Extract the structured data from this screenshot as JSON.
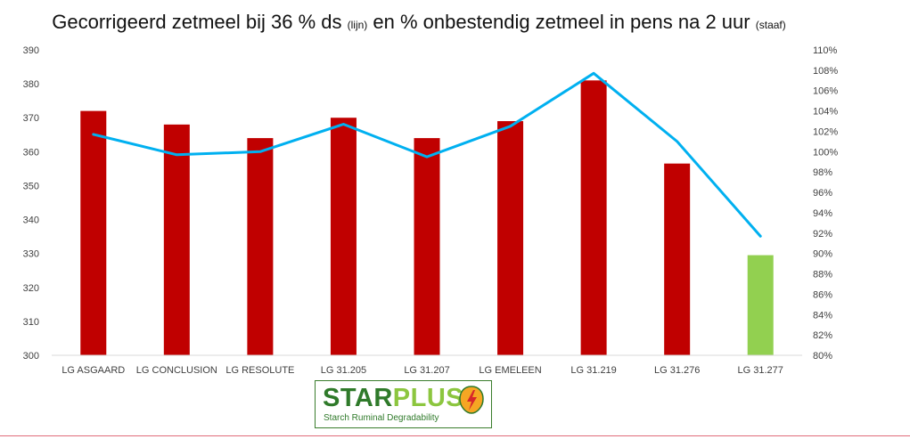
{
  "title": {
    "part1": "Gecorrigeerd zetmeel bij 36 % ds",
    "part2": "(lijn)",
    "part3": "en % onbestendig zetmeel in pens na 2 uur",
    "part4": "(staaf)"
  },
  "chart_data": {
    "type": "bar",
    "categories": [
      "LG ASGAARD",
      "LG CONCLUSION",
      "LG RESOLUTE",
      "LG 31.205",
      "LG 31.207",
      "LG EMELEEN",
      "LG 31.219",
      "LG 31.276",
      "LG 31.277"
    ],
    "series": [
      {
        "type": "bar",
        "axis": "left",
        "values": [
          372,
          368,
          364,
          370,
          364,
          369,
          381,
          356.5,
          329.5
        ],
        "colors": [
          "#c00000",
          "#c00000",
          "#c00000",
          "#c00000",
          "#c00000",
          "#c00000",
          "#c00000",
          "#c00000",
          "#92d050"
        ]
      },
      {
        "type": "line",
        "axis": "right",
        "values": [
          1.017,
          0.997,
          1.0,
          1.027,
          0.995,
          1.025,
          1.077,
          1.01,
          0.917
        ],
        "color": "#00b0f0"
      }
    ],
    "y_left": {
      "min": 300,
      "max": 390,
      "step": 10
    },
    "y_right": {
      "min": 0.8,
      "max": 1.1,
      "step": 0.02
    },
    "y_left_ticks": [
      "300",
      "310",
      "320",
      "330",
      "340",
      "350",
      "360",
      "370",
      "380",
      "390"
    ],
    "y_right_ticks": [
      "80%",
      "82%",
      "84%",
      "86%",
      "88%",
      "90%",
      "92%",
      "94%",
      "96%",
      "98%",
      "100%",
      "102%",
      "104%",
      "106%",
      "108%",
      "110%"
    ],
    "grid": false,
    "legend": "none"
  },
  "logo": {
    "word_a": "STAR",
    "word_b": "PLUS",
    "tagline": "Starch Ruminal Degradability"
  }
}
